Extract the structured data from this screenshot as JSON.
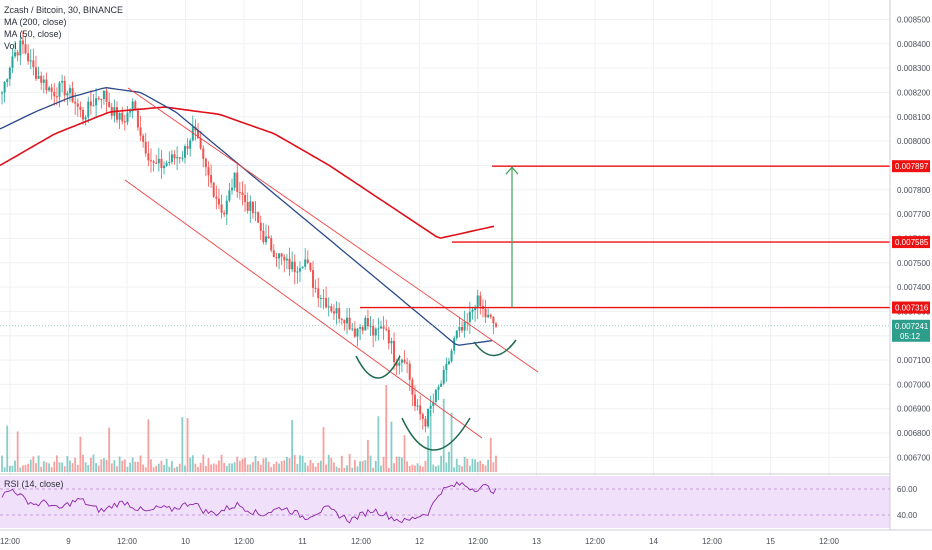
{
  "legend": {
    "title": "Zcash / Bitcoin, 30, BINANCE",
    "ma200": "MA (200, close)",
    "ma50": "MA (50, close)",
    "vol": "Vol"
  },
  "rsi_panel": {
    "label": "RSI (14, close)"
  },
  "colors": {
    "up": "#26a69a",
    "down": "#ef5350",
    "ma200": "#e0101a",
    "ma50": "#2a4a8a",
    "level": "#ee1111",
    "arrow": "#3fa05a",
    "pattern": "#1f6b4e",
    "channel": "#ee4444",
    "rsi_line": "#8e24aa",
    "rsi_band": "#f1e0fa"
  },
  "chart_data": [
    {
      "type": "candlestick",
      "title": "Zcash / Bitcoin, 30, BINANCE",
      "x_ticks": [
        "12:00",
        "9",
        "12:00",
        "10",
        "12:00",
        "11",
        "12:00",
        "12",
        "12:00",
        "13",
        "12:00",
        "14",
        "12:00",
        "15",
        "12:00"
      ],
      "y_ticks": [
        0.0067,
        0.0068,
        0.0069,
        0.007,
        0.0071,
        0.0072,
        0.0073,
        0.0074,
        0.0075,
        0.0076,
        0.0077,
        0.0078,
        0.0079,
        0.008,
        0.0081,
        0.0082,
        0.0083,
        0.0084,
        0.0085
      ],
      "y_tick_labels": [
        "0.006700",
        "0.006800",
        "0.006900",
        "0.007000",
        "0.007100",
        "0.007200",
        "0.007300",
        "0.007400",
        "0.007500",
        "0.007600",
        "0.007700",
        "0.007800",
        "0.007900",
        "0.008000",
        "0.008100",
        "0.008200",
        "0.008300",
        "0.008400",
        "0.008500"
      ],
      "ylim": [
        0.00664,
        0.00858
      ],
      "price_path": [
        0.0082,
        0.00835,
        0.0084,
        0.0083,
        0.00825,
        0.0082,
        0.00822,
        0.00818,
        0.0081,
        0.00816,
        0.0082,
        0.00812,
        0.00808,
        0.00815,
        0.008,
        0.0079,
        0.0079,
        0.00793,
        0.00795,
        0.00805,
        0.0079,
        0.0078,
        0.0077,
        0.00785,
        0.00776,
        0.0077,
        0.0076,
        0.00755,
        0.0075,
        0.00748,
        0.00752,
        0.0074,
        0.00735,
        0.0073,
        0.00728,
        0.00722,
        0.00726,
        0.0072,
        0.00725,
        0.0071,
        0.00712,
        0.0069,
        0.00685,
        0.00695,
        0.00705,
        0.0072,
        0.00723,
        0.00735,
        0.00728,
        0.00724
      ],
      "ma50_path": [
        0.00805,
        0.00812,
        0.00818,
        0.00822,
        0.0082,
        0.00812,
        0.008,
        0.00788,
        0.00776,
        0.00764,
        0.00752,
        0.0074,
        0.00728,
        0.00716,
        0.00718
      ],
      "ma200_path": [
        0.0079,
        0.00803,
        0.00812,
        0.00814,
        0.00811,
        0.00803,
        0.0079,
        0.00775,
        0.0076,
        0.00765
      ],
      "levels": [
        {
          "value": 0.007897,
          "label": "0.007897"
        },
        {
          "value": 0.007585,
          "label": "0.007585"
        },
        {
          "value": 0.007316,
          "label": "0.007316"
        }
      ],
      "last_price": {
        "value": 0.007241,
        "label": "0.007241",
        "countdown": "05:12"
      },
      "rsi": {
        "ylim": [
          30,
          70
        ],
        "ticks": [
          60,
          40
        ],
        "tick_labels": [
          "60.00",
          "40.00"
        ],
        "band": [
          30,
          70
        ],
        "path": [
          55,
          60,
          52,
          48,
          50,
          44,
          49,
          52,
          46,
          43,
          48,
          50,
          45,
          42,
          46,
          44,
          47,
          50,
          43,
          41,
          45,
          48,
          44,
          40,
          43,
          46,
          42,
          38,
          42,
          45,
          40,
          36,
          40,
          44,
          41,
          37,
          35,
          39,
          42,
          58,
          62,
          64,
          60,
          62,
          58
        ]
      }
    }
  ]
}
